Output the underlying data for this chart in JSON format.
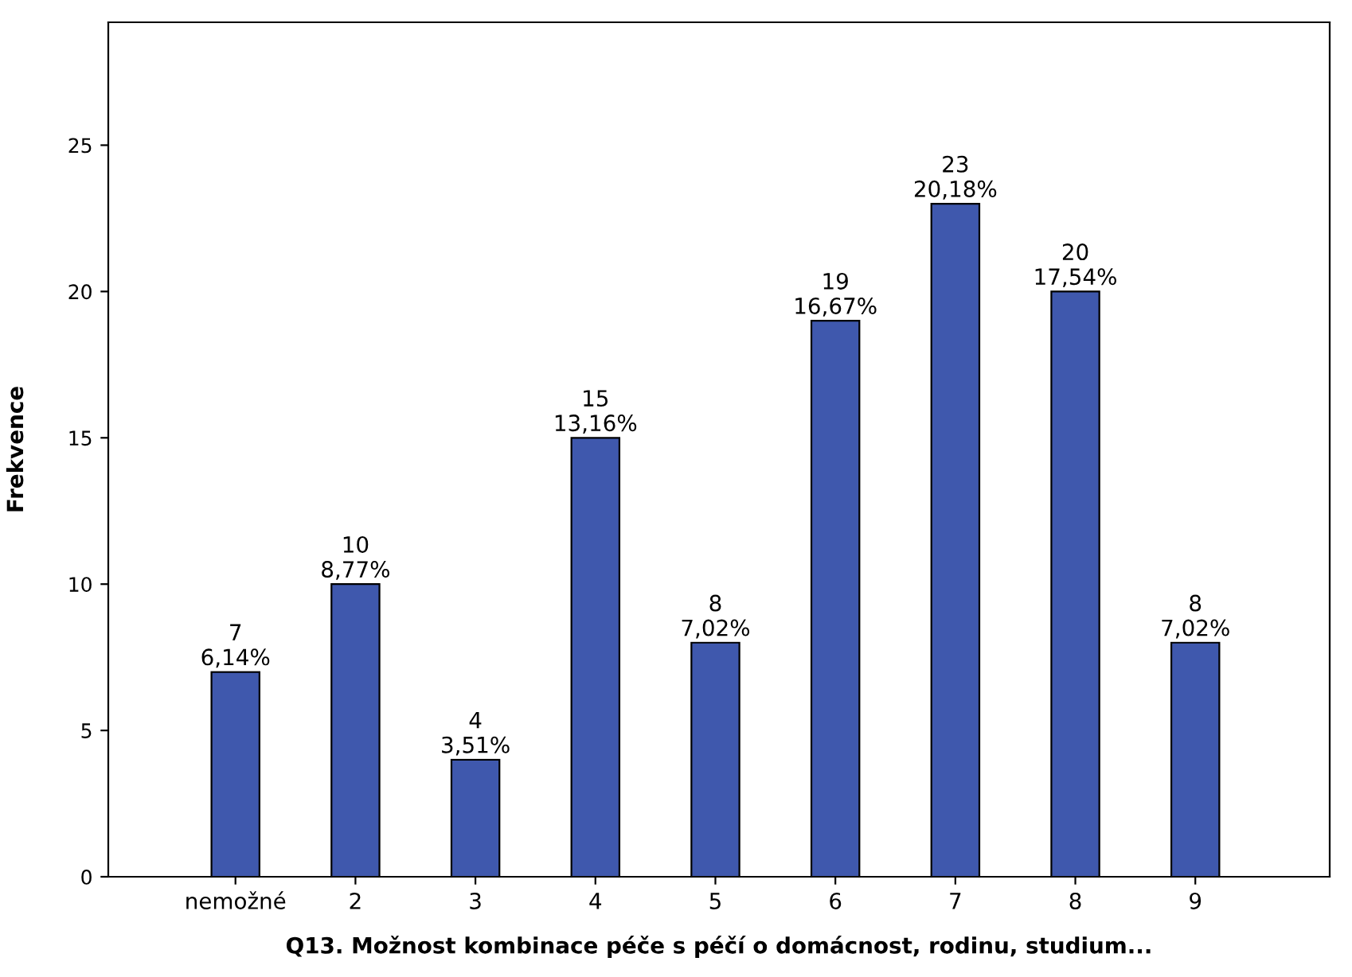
{
  "chart_data": {
    "type": "bar",
    "xlabel": "Q13. Možnost kombinace péče s péčí o domácnost, rodinu, studium...",
    "ylabel": "Frekvence",
    "categories": [
      "nemožné",
      "2",
      "3",
      "4",
      "5",
      "6",
      "7",
      "8",
      "9"
    ],
    "values": [
      7,
      10,
      4,
      15,
      8,
      19,
      23,
      20,
      8
    ],
    "color": "#3f58ad",
    "value_labels": [
      "7\n6,14%",
      "10\n8,77%",
      "4\n3,51%",
      "15\n13,16%",
      "8\n7,02%",
      "19\n16,67%",
      "23\n20,18%",
      "20\n17,54%",
      "8\n7,02%"
    ],
    "ylim": [
      0,
      29.2
    ],
    "yticks": [
      0,
      5,
      10,
      15,
      20,
      25
    ],
    "grid": false,
    "legend": false
  }
}
